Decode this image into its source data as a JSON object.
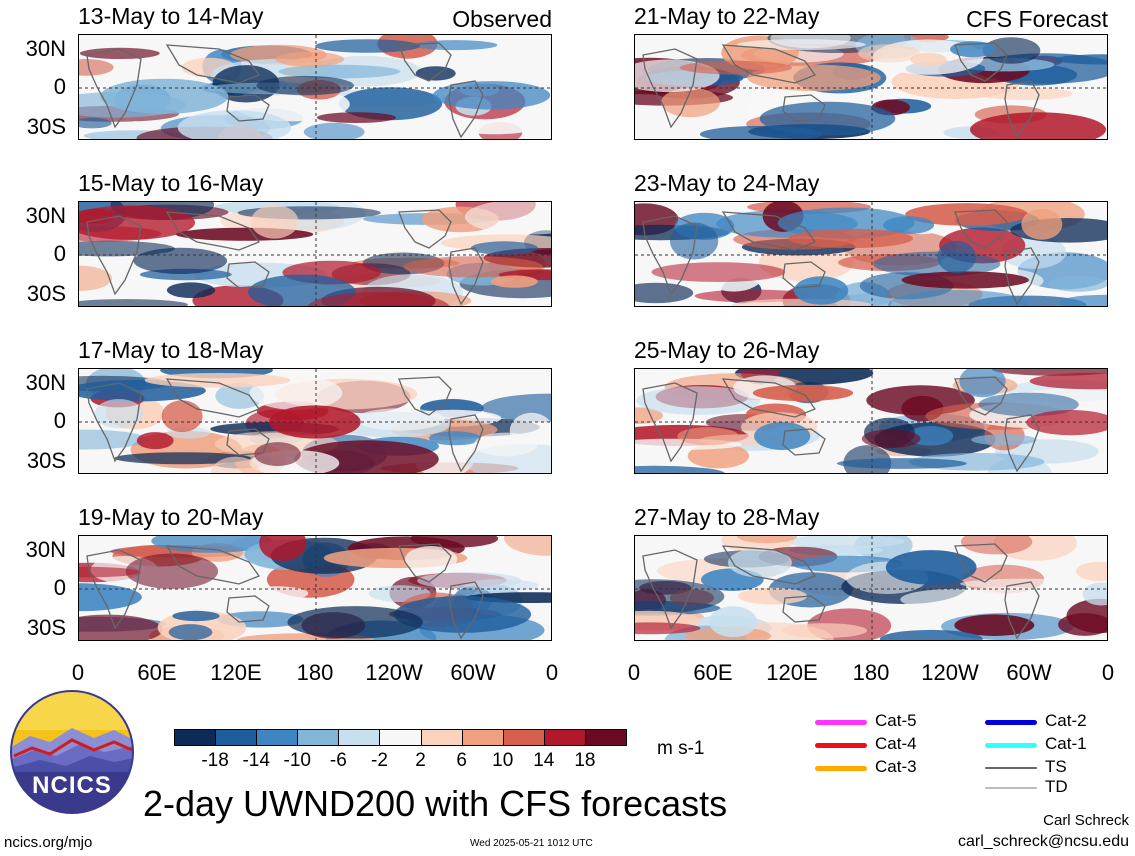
{
  "panels": [
    {
      "title": "13-May to 14-May",
      "tag": "Observed"
    },
    {
      "title": "21-May to 22-May",
      "tag": "CFS Forecast"
    },
    {
      "title": "15-May to 16-May",
      "tag": ""
    },
    {
      "title": "23-May to 24-May",
      "tag": ""
    },
    {
      "title": "17-May to 18-May",
      "tag": ""
    },
    {
      "title": "25-May to 26-May",
      "tag": ""
    },
    {
      "title": "19-May to 20-May",
      "tag": ""
    },
    {
      "title": "27-May to 28-May",
      "tag": ""
    }
  ],
  "lat_ticks": [
    "30N",
    "0",
    "30S"
  ],
  "lon_ticks": [
    "0",
    "60E",
    "120E",
    "180",
    "120W",
    "60W",
    "0"
  ],
  "colorbar": {
    "ticks": [
      "-18",
      "-14",
      "-10",
      "-6",
      "-2",
      "2",
      "6",
      "10",
      "14",
      "18"
    ],
    "colors": [
      "#0d2b57",
      "#1f5e9c",
      "#3e86c2",
      "#82b6d9",
      "#c7dfee",
      "#f7f7f7",
      "#fbd2bd",
      "#f0a07e",
      "#d65f4d",
      "#b2182b",
      "#6b0a22"
    ],
    "units": "m s-1"
  },
  "legend": [
    {
      "label": "Cat-5",
      "color": "#ff33ff"
    },
    {
      "label": "Cat-4",
      "color": "#ee1111"
    },
    {
      "label": "Cat-3",
      "color": "#ffaa00"
    },
    {
      "label": "Cat-2",
      "color": "#0000dd"
    },
    {
      "label": "Cat-1",
      "color": "#33ffff"
    },
    {
      "label": "TS",
      "color": "#666666"
    },
    {
      "label": "TD",
      "color": "#bbbbbb"
    }
  ],
  "logo_text": "NCICS",
  "main_title": "2-day UWND200 with CFS forecasts",
  "footer": {
    "left": "ncics.org/mjo",
    "center": "Wed 2025-05-21 1012 UTC",
    "author": "Carl Schreck",
    "email": "carl_schreck@ncsu.edu"
  },
  "chart_data": {
    "type": "heatmap",
    "variable": "UWND200",
    "units": "m s-1",
    "x_ticks": [
      "0",
      "60E",
      "120E",
      "180",
      "120W",
      "60W",
      "0"
    ],
    "y_ticks": [
      "30N",
      "0",
      "30S"
    ],
    "levels": [
      -18,
      -14,
      -10,
      -6,
      -2,
      2,
      6,
      10,
      14,
      18
    ]
  }
}
